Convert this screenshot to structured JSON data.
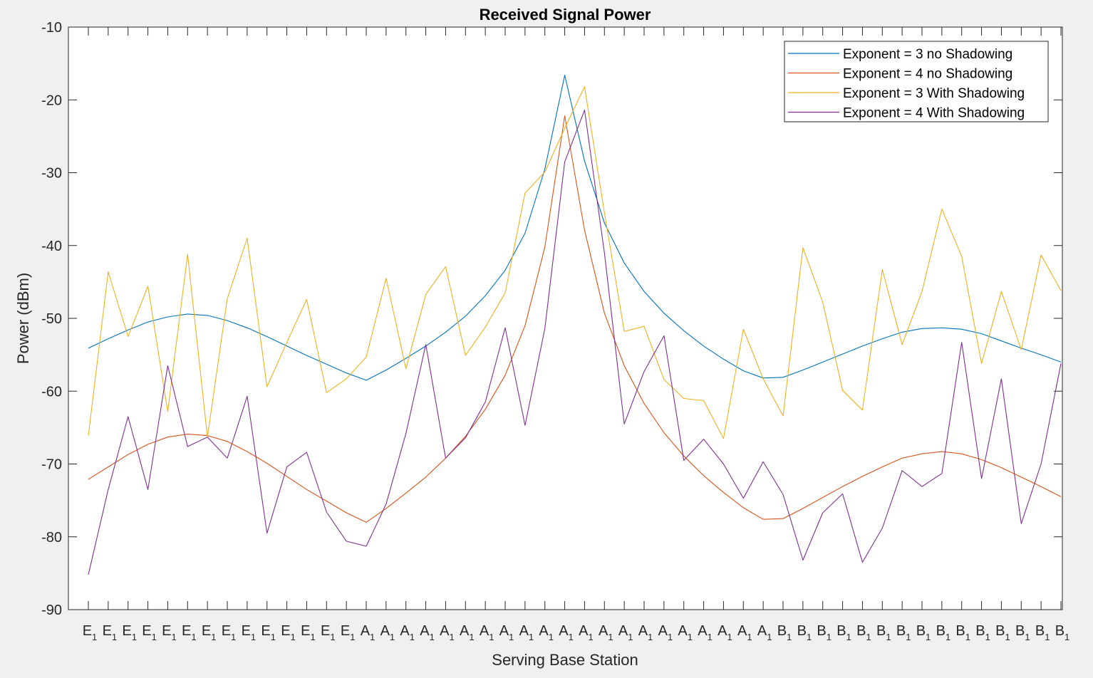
{
  "chart_data": {
    "type": "line",
    "title": "Received Signal Power",
    "xlabel": "Serving Base Station",
    "ylabel": "Power (dBm)",
    "ylim": [
      -90,
      -10
    ],
    "yticks": [
      -90,
      -80,
      -70,
      -60,
      -50,
      -40,
      -30,
      -20,
      -10
    ],
    "ytick_labels": [
      "-90",
      "-80",
      "-70",
      "-60",
      "-50",
      "-40",
      "-30",
      "-20",
      "-10"
    ],
    "grid": false,
    "legend_position": "top-right",
    "categories": [
      "E1",
      "E1",
      "E1",
      "E1",
      "E1",
      "E1",
      "E1",
      "E1",
      "E1",
      "E1",
      "E1",
      "E1",
      "E1",
      "E1",
      "A1",
      "A1",
      "A1",
      "A1",
      "A1",
      "A1",
      "A1",
      "A1",
      "A1",
      "A1",
      "A1",
      "A1",
      "A1",
      "A1",
      "A1",
      "A1",
      "A1",
      "A1",
      "A1",
      "A1",
      "A1",
      "B1",
      "B1",
      "B1",
      "B1",
      "B1",
      "B1",
      "B1",
      "B1",
      "B1",
      "B1",
      "B1",
      "B1",
      "B1",
      "B1",
      "B1"
    ],
    "xticks": [
      {
        "base": "E",
        "sub": "1"
      },
      {
        "base": "E",
        "sub": "1"
      },
      {
        "base": "E",
        "sub": "1"
      },
      {
        "base": "E",
        "sub": "1"
      },
      {
        "base": "E",
        "sub": "1"
      },
      {
        "base": "E",
        "sub": "1"
      },
      {
        "base": "E",
        "sub": "1"
      },
      {
        "base": "E",
        "sub": "1"
      },
      {
        "base": "E",
        "sub": "1"
      },
      {
        "base": "E",
        "sub": "1"
      },
      {
        "base": "E",
        "sub": "1"
      },
      {
        "base": "E",
        "sub": "1"
      },
      {
        "base": "E",
        "sub": "1"
      },
      {
        "base": "E",
        "sub": "1"
      },
      {
        "base": "A",
        "sub": "1"
      },
      {
        "base": "A",
        "sub": "1"
      },
      {
        "base": "A",
        "sub": "1"
      },
      {
        "base": "A",
        "sub": "1"
      },
      {
        "base": "A",
        "sub": "1"
      },
      {
        "base": "A",
        "sub": "1"
      },
      {
        "base": "A",
        "sub": "1"
      },
      {
        "base": "A",
        "sub": "1"
      },
      {
        "base": "A",
        "sub": "1"
      },
      {
        "base": "A",
        "sub": "1"
      },
      {
        "base": "A",
        "sub": "1"
      },
      {
        "base": "A",
        "sub": "1"
      },
      {
        "base": "A",
        "sub": "1"
      },
      {
        "base": "A",
        "sub": "1"
      },
      {
        "base": "A",
        "sub": "1"
      },
      {
        "base": "A",
        "sub": "1"
      },
      {
        "base": "A",
        "sub": "1"
      },
      {
        "base": "A",
        "sub": "1"
      },
      {
        "base": "A",
        "sub": "1"
      },
      {
        "base": "A",
        "sub": "1"
      },
      {
        "base": "A",
        "sub": "1"
      },
      {
        "base": "B",
        "sub": "1"
      },
      {
        "base": "B",
        "sub": "1"
      },
      {
        "base": "B",
        "sub": "1"
      },
      {
        "base": "B",
        "sub": "1"
      },
      {
        "base": "B",
        "sub": "1"
      },
      {
        "base": "B",
        "sub": "1"
      },
      {
        "base": "B",
        "sub": "1"
      },
      {
        "base": "B",
        "sub": "1"
      },
      {
        "base": "B",
        "sub": "1"
      },
      {
        "base": "B",
        "sub": "1"
      },
      {
        "base": "B",
        "sub": "1"
      },
      {
        "base": "B",
        "sub": "1"
      },
      {
        "base": "B",
        "sub": "1"
      },
      {
        "base": "B",
        "sub": "1"
      },
      {
        "base": "B",
        "sub": "1"
      }
    ],
    "series": [
      {
        "name": "Exponent = 3 no Shadowing",
        "color": "#0072BD",
        "values": [
          -54.1,
          -52.8,
          -51.6,
          -50.5,
          -49.8,
          -49.4,
          -49.6,
          -50.3,
          -51.3,
          -52.5,
          -53.8,
          -55.1,
          -56.3,
          -57.5,
          -58.5,
          -57.1,
          -55.5,
          -53.8,
          -51.9,
          -49.7,
          -46.9,
          -43.4,
          -38.3,
          -29.5,
          -16.6,
          -28.4,
          -36.9,
          -42.4,
          -46.3,
          -49.3,
          -51.7,
          -53.8,
          -55.6,
          -57.2,
          -58.2,
          -58.1,
          -57.1,
          -56.0,
          -54.9,
          -53.8,
          -52.8,
          -51.9,
          -51.4,
          -51.3,
          -51.5,
          -52.1,
          -53.1,
          -54.1,
          -55.0,
          -56.0
        ]
      },
      {
        "name": "Exponent = 4 no Shadowing",
        "color": "#D95319",
        "values": [
          -72.1,
          -70.4,
          -68.7,
          -67.3,
          -66.3,
          -65.9,
          -66.1,
          -66.9,
          -68.3,
          -69.9,
          -71.7,
          -73.5,
          -75.1,
          -76.7,
          -78.0,
          -76.1,
          -74.0,
          -71.8,
          -69.2,
          -66.2,
          -62.5,
          -57.8,
          -51.0,
          -40.2,
          -22.2,
          -37.9,
          -49.3,
          -56.5,
          -61.7,
          -65.7,
          -68.9,
          -71.6,
          -73.9,
          -76.0,
          -77.6,
          -77.5,
          -76.1,
          -74.6,
          -73.1,
          -71.7,
          -70.4,
          -69.2,
          -68.6,
          -68.3,
          -68.6,
          -69.4,
          -70.5,
          -71.8,
          -73.1,
          -74.5
        ]
      },
      {
        "name": "Exponent = 3 With Shadowing",
        "color": "#EDB120",
        "values": [
          -66.1,
          -43.6,
          -52.5,
          -45.6,
          -62.8,
          -41.2,
          -66.3,
          -47.3,
          -39.0,
          -59.4,
          -53.3,
          -47.4,
          -60.2,
          -58.3,
          -55.3,
          -44.5,
          -56.9,
          -46.7,
          -42.9,
          -55.1,
          -51.2,
          -46.5,
          -32.8,
          -29.9,
          -23.9,
          -18.2,
          -35.5,
          -51.8,
          -51.1,
          -58.4,
          -61.0,
          -61.3,
          -66.5,
          -51.5,
          -58.3,
          -63.4,
          -40.3,
          -47.8,
          -59.9,
          -62.6,
          -43.3,
          -53.6,
          -46.3,
          -35.0,
          -41.5,
          -56.2,
          -46.3,
          -54.3,
          -41.3,
          -46.2
        ]
      },
      {
        "name": "Exponent = 4 With Shadowing",
        "color": "#7E2F8E",
        "values": [
          -85.2,
          -73.5,
          -63.5,
          -73.5,
          -56.5,
          -67.6,
          -66.3,
          -69.2,
          -60.7,
          -79.5,
          -70.4,
          -68.4,
          -76.6,
          -80.6,
          -81.3,
          -75.5,
          -65.8,
          -53.6,
          -69.2,
          -66.4,
          -61.5,
          -51.3,
          -64.7,
          -51.4,
          -28.5,
          -21.4,
          -41.0,
          -64.5,
          -57.3,
          -52.4,
          -69.5,
          -66.6,
          -70.0,
          -74.7,
          -69.7,
          -74.2,
          -83.2,
          -76.7,
          -74.1,
          -83.5,
          -78.8,
          -70.9,
          -73.1,
          -71.3,
          -53.3,
          -72.0,
          -58.3,
          -78.2,
          -70.0,
          -56.2
        ]
      }
    ]
  }
}
